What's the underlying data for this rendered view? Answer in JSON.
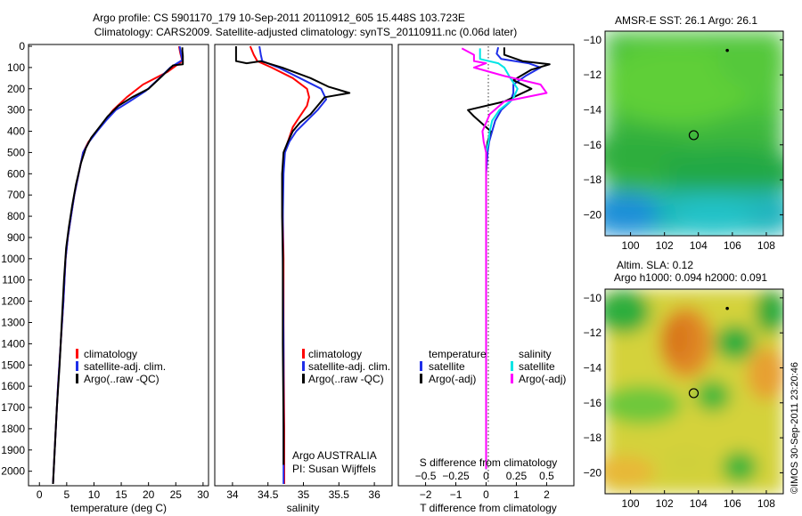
{
  "header": {
    "line1": "Argo profile: CS 5901170_179 10-Sep-2011 20110912_605 15.448S 103.723E",
    "line2": "Climatology: CARS2009. Satellite-adjusted climatology: synTS_20110911.nc (0.06d later)"
  },
  "colors": {
    "climatology": "#ff0000",
    "satellite": "#1f2fe8",
    "argo": "#000000",
    "argo_salinity_diff": "#ff00ff",
    "satellite_salinity_diff": "#00e5e5"
  },
  "chart_data": [
    {
      "type": "line",
      "xlabel": "temperature (deg C)",
      "ylabel": "",
      "xlim": [
        -2,
        31
      ],
      "ylim": [
        2060,
        0
      ],
      "x_ticks": [
        0,
        5,
        10,
        15,
        20,
        25,
        30
      ],
      "x_tick_labels": [
        "0",
        "5",
        "10",
        "15",
        "20",
        "25",
        "30"
      ],
      "y_ticks": [
        0,
        100,
        200,
        300,
        400,
        500,
        600,
        700,
        800,
        900,
        1000,
        1100,
        1200,
        1300,
        1400,
        1500,
        1600,
        1700,
        1800,
        1900,
        2000
      ],
      "legend": [
        "climatology",
        "satellite-adj. clim.",
        "Argo(..raw -QC)"
      ],
      "series": [
        {
          "name": "climatology",
          "color_key": "climatology",
          "points": [
            [
              25.6,
              0
            ],
            [
              25.8,
              30
            ],
            [
              26.2,
              70
            ],
            [
              23.5,
              120
            ],
            [
              19,
              180
            ],
            [
              16,
              240
            ],
            [
              13.5,
              300
            ],
            [
              12,
              350
            ],
            [
              10.5,
              400
            ],
            [
              9,
              450
            ],
            [
              8,
              500
            ],
            [
              7.2,
              600
            ],
            [
              6.4,
              700
            ],
            [
              5.8,
              800
            ],
            [
              5.2,
              900
            ],
            [
              4.8,
              1000
            ],
            [
              4.4,
              1200
            ],
            [
              3.9,
              1400
            ],
            [
              3.4,
              1600
            ],
            [
              3.0,
              1800
            ],
            [
              2.6,
              2000
            ],
            [
              2.5,
              2060
            ]
          ]
        },
        {
          "name": "satellite-adj. clim.",
          "color_key": "satellite",
          "points": [
            [
              25.7,
              0
            ],
            [
              25.9,
              30
            ],
            [
              26.2,
              65
            ],
            [
              24,
              100
            ],
            [
              22,
              150
            ],
            [
              19.5,
              210
            ],
            [
              16.5,
              260
            ],
            [
              14,
              300
            ],
            [
              12.2,
              350
            ],
            [
              10.6,
              400
            ],
            [
              9.1,
              450
            ],
            [
              8,
              500
            ],
            [
              7.2,
              600
            ],
            [
              6.4,
              700
            ],
            [
              5.8,
              800
            ],
            [
              5.2,
              900
            ],
            [
              4.8,
              1000
            ],
            [
              4.4,
              1200
            ],
            [
              3.9,
              1400
            ],
            [
              3.4,
              1600
            ],
            [
              3.0,
              1800
            ],
            [
              2.6,
              2000
            ],
            [
              2.5,
              2060
            ]
          ]
        },
        {
          "name": "Argo(..raw -QC)",
          "color_key": "argo",
          "points": [
            [
              26.2,
              5
            ],
            [
              26.2,
              20
            ],
            [
              26.3,
              45
            ],
            [
              26.3,
              85
            ],
            [
              24.5,
              90
            ],
            [
              22.5,
              140
            ],
            [
              20,
              200
            ],
            [
              17,
              240
            ],
            [
              14.5,
              280
            ],
            [
              12.5,
              330
            ],
            [
              11,
              380
            ],
            [
              9.5,
              430
            ],
            [
              8.5,
              480
            ],
            [
              7.6,
              550
            ],
            [
              6.7,
              650
            ],
            [
              6,
              750
            ],
            [
              5.4,
              850
            ],
            [
              4.9,
              950
            ],
            [
              4.5,
              1100
            ],
            [
              4.1,
              1300
            ],
            [
              3.7,
              1500
            ],
            [
              3.2,
              1700
            ],
            [
              2.8,
              1900
            ],
            [
              2.6,
              2000
            ],
            [
              2.5,
              2060
            ]
          ]
        }
      ]
    },
    {
      "type": "line",
      "xlabel": "salinity",
      "ylabel": "",
      "xlim": [
        33.75,
        36.25
      ],
      "ylim": [
        2060,
        0
      ],
      "x_ticks": [
        34,
        34.5,
        35,
        35.5,
        36
      ],
      "x_tick_labels": [
        "34",
        "34.5",
        "35",
        "35.5",
        "36"
      ],
      "legend": [
        "climatology",
        "satellite-adj. clim.",
        "Argo(..raw -QC)"
      ],
      "annotation": [
        "Argo AUSTRALIA",
        "PI: Susan Wijffels"
      ],
      "series": [
        {
          "name": "climatology",
          "color_key": "climatology",
          "points": [
            [
              34.25,
              0
            ],
            [
              34.3,
              40
            ],
            [
              34.35,
              70
            ],
            [
              34.55,
              100
            ],
            [
              34.85,
              150
            ],
            [
              35.05,
              200
            ],
            [
              35.08,
              240
            ],
            [
              35.05,
              280
            ],
            [
              34.95,
              330
            ],
            [
              34.85,
              380
            ],
            [
              34.8,
              430
            ],
            [
              34.73,
              500
            ],
            [
              34.71,
              600
            ],
            [
              34.71,
              800
            ],
            [
              34.72,
              1000
            ],
            [
              34.72,
              1400
            ],
            [
              34.73,
              1800
            ],
            [
              34.73,
              2060
            ]
          ]
        },
        {
          "name": "satellite-adj. clim.",
          "color_key": "satellite",
          "points": [
            [
              34.38,
              0
            ],
            [
              34.4,
              40
            ],
            [
              34.42,
              70
            ],
            [
              34.65,
              100
            ],
            [
              34.95,
              150
            ],
            [
              35.25,
              200
            ],
            [
              35.32,
              250
            ],
            [
              35.2,
              300
            ],
            [
              35.05,
              350
            ],
            [
              34.9,
              400
            ],
            [
              34.8,
              450
            ],
            [
              34.74,
              500
            ],
            [
              34.72,
              600
            ],
            [
              34.71,
              800
            ],
            [
              34.71,
              1000
            ],
            [
              34.72,
              1400
            ],
            [
              34.72,
              1800
            ],
            [
              34.72,
              2000
            ],
            [
              34.72,
              2060
            ]
          ]
        },
        {
          "name": "Argo(..raw -QC)",
          "color_key": "argo",
          "points": [
            [
              34.05,
              0
            ],
            [
              34.05,
              70
            ],
            [
              34.2,
              80
            ],
            [
              34.4,
              70
            ],
            [
              34.7,
              100
            ],
            [
              35.1,
              150
            ],
            [
              35.35,
              190
            ],
            [
              35.65,
              220
            ],
            [
              35.3,
              240
            ],
            [
              35.2,
              280
            ],
            [
              35.1,
              320
            ],
            [
              34.95,
              360
            ],
            [
              34.85,
              400
            ],
            [
              34.78,
              450
            ],
            [
              34.72,
              500
            ],
            [
              34.7,
              600
            ],
            [
              34.7,
              800
            ],
            [
              34.71,
              1000
            ],
            [
              34.71,
              1400
            ],
            [
              34.72,
              1800
            ],
            [
              34.72,
              1970
            ]
          ]
        }
      ]
    },
    {
      "type": "line",
      "xlabel": "T difference from climatology",
      "title_bottom": "S difference from climatology",
      "xlim": [
        -2.9,
        2.9
      ],
      "ylim": [
        2060,
        0
      ],
      "x_ticks": [
        -2,
        -1,
        0,
        1,
        2
      ],
      "x_tick_labels": [
        "−2",
        "−1",
        "0",
        "1",
        "2"
      ],
      "s_ticks": [
        -0.5,
        -0.25,
        0,
        0.25,
        0.5
      ],
      "s_tick_labels": [
        "−0.5",
        "−0.25",
        "0",
        "0.25",
        "0.5"
      ],
      "legend_left_title": "temperature",
      "legend_right_title": "salinity",
      "legend": [
        "satellite",
        "Argo(-adj)"
      ],
      "series": [
        {
          "name": "satellite",
          "color_key": "satellite",
          "points": [
            [
              0.4,
              5
            ],
            [
              0.35,
              35
            ],
            [
              0.5,
              60
            ],
            [
              1.4,
              80
            ],
            [
              1.8,
              100
            ],
            [
              1.3,
              140
            ],
            [
              0.9,
              180
            ],
            [
              0.9,
              220
            ],
            [
              0.8,
              260
            ],
            [
              0.5,
              300
            ],
            [
              0.3,
              350
            ],
            [
              0.2,
              400
            ],
            [
              0.1,
              450
            ],
            [
              0.05,
              500
            ],
            [
              0,
              600
            ],
            [
              0,
              800
            ],
            [
              0,
              1000
            ],
            [
              0,
              1400
            ],
            [
              0,
              1800
            ],
            [
              0,
              1990
            ]
          ]
        },
        {
          "name": "Argo(-adj)",
          "color_key": "argo",
          "points": [
            [
              0.6,
              5
            ],
            [
              0.6,
              40
            ],
            [
              1.2,
              70
            ],
            [
              2.1,
              85
            ],
            [
              1.5,
              110
            ],
            [
              0.9,
              160
            ],
            [
              1.5,
              200
            ],
            [
              0.6,
              260
            ],
            [
              -0.6,
              300
            ],
            [
              -0.4,
              330
            ],
            [
              0.15,
              400
            ],
            [
              0.05,
              450
            ],
            [
              0,
              500
            ],
            [
              0,
              700
            ],
            [
              0,
              1000
            ],
            [
              0,
              1400
            ],
            [
              0,
              1800
            ],
            [
              0,
              1990
            ]
          ]
        },
        {
          "name": "satellite",
          "color_key": "satellite_salinity_diff",
          "axis": "s",
          "points": [
            [
              -0.05,
              10
            ],
            [
              -0.05,
              60
            ],
            [
              0.1,
              80
            ],
            [
              0.15,
              100
            ],
            [
              0.2,
              150
            ],
            [
              0.26,
              200
            ],
            [
              0.22,
              250
            ],
            [
              0.11,
              300
            ],
            [
              0.05,
              350
            ],
            [
              0.03,
              400
            ],
            [
              0.02,
              450
            ],
            [
              0,
              500
            ],
            [
              0,
              800
            ],
            [
              0,
              1200
            ],
            [
              0,
              1600
            ],
            [
              0,
              1990
            ]
          ]
        },
        {
          "name": "Argo(-adj)",
          "color_key": "argo_salinity_diff",
          "axis": "s",
          "points": [
            [
              -0.2,
              10
            ],
            [
              -0.1,
              40
            ],
            [
              -0.1,
              70
            ],
            [
              0.0,
              80
            ],
            [
              -0.1,
              100
            ],
            [
              0.15,
              140
            ],
            [
              0.45,
              180
            ],
            [
              0.5,
              220
            ],
            [
              0.15,
              260
            ],
            [
              0.03,
              320
            ],
            [
              -0.03,
              400
            ],
            [
              -0.02,
              450
            ],
            [
              0,
              500
            ],
            [
              0,
              800
            ],
            [
              0,
              1200
            ],
            [
              0,
              1600
            ],
            [
              0,
              1990
            ]
          ]
        }
      ]
    },
    {
      "type": "heatmap",
      "title": "AMSR-E SST: 26.1  Argo: 26.1",
      "xlim": [
        98.5,
        109
      ],
      "ylim": [
        -21.2,
        -9.5
      ],
      "x_ticks": [
        100,
        102,
        104,
        106,
        108
      ],
      "y_ticks": [
        -10,
        -12,
        -14,
        -16,
        -18,
        -20
      ],
      "y_tick_labels": [
        "−10",
        "−12",
        "−14",
        "−16",
        "−18",
        "−20"
      ],
      "float_position": [
        103.723,
        -15.448
      ],
      "marker": [
        105.7,
        -10.6
      ]
    },
    {
      "type": "heatmap",
      "title_lines": [
        "Altim. SLA: 0.12",
        "Argo h1000: 0.094 h2000: 0.091"
      ],
      "xlim": [
        98.5,
        109
      ],
      "ylim": [
        -21.2,
        -9.5
      ],
      "x_ticks": [
        100,
        102,
        104,
        106,
        108
      ],
      "y_ticks": [
        -10,
        -12,
        -14,
        -16,
        -18,
        -20
      ],
      "y_tick_labels": [
        "−10",
        "−12",
        "−14",
        "−16",
        "−18",
        "−20"
      ],
      "float_position": [
        103.723,
        -15.448
      ],
      "marker": [
        105.7,
        -10.6
      ]
    }
  ],
  "side_note": "©IMOS 30-Sep-2011 23:20:46"
}
